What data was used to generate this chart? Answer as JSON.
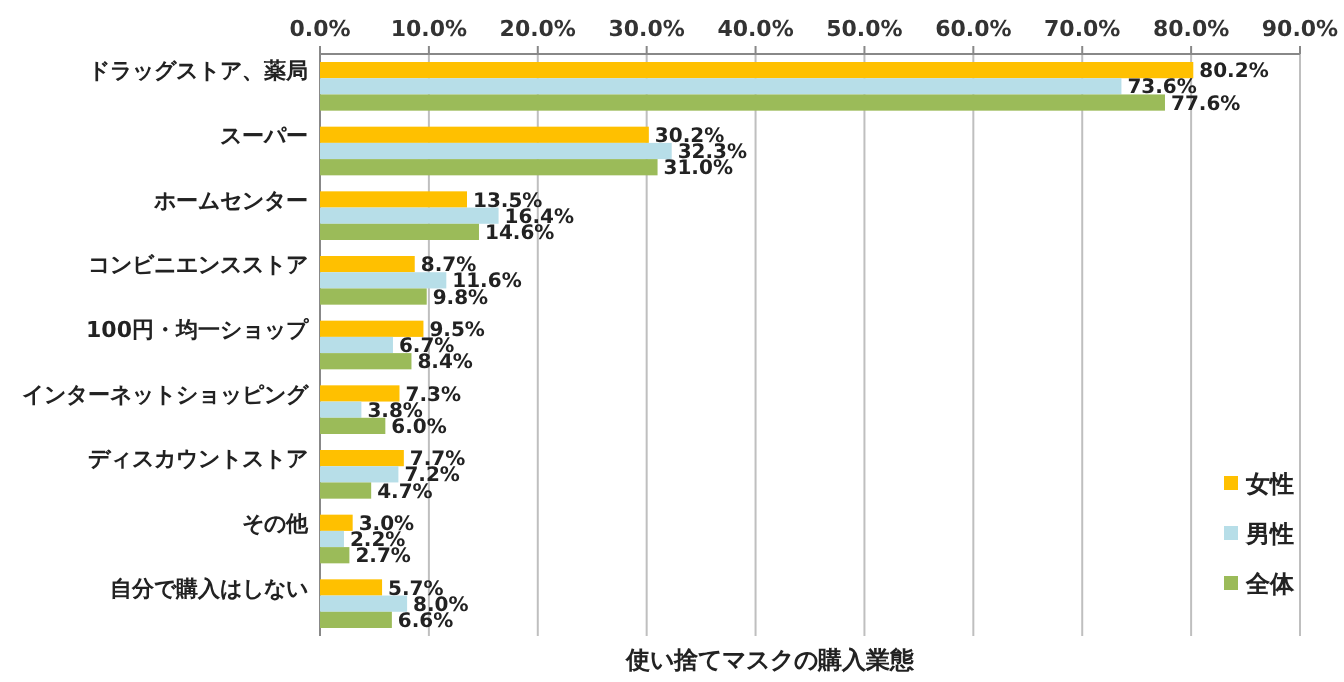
{
  "chart_data": {
    "type": "bar",
    "orientation": "horizontal",
    "title": "使い捨てマスクの購入業態",
    "categories": [
      "ドラッグストア、薬局",
      "スーパー",
      "ホームセンター",
      "コンビニエンスストア",
      "100円・均一ショップ",
      "インターネットショッピング",
      "ディスカウントストア",
      "その他",
      "自分で購入はしない"
    ],
    "series": [
      {
        "name": "女性",
        "color": "#ffc000",
        "values": [
          80.2,
          30.2,
          13.5,
          8.7,
          9.5,
          7.3,
          7.7,
          3.0,
          5.7
        ],
        "value_labels": [
          "80.2%",
          "30.2%",
          "13.5%",
          "8.7%",
          "9.5%",
          "7.3%",
          "7.7%",
          "3.0%",
          "5.7%"
        ]
      },
      {
        "name": "男性",
        "color": "#b7dee8",
        "values": [
          73.6,
          32.3,
          16.4,
          11.6,
          6.7,
          3.8,
          7.2,
          2.2,
          8.0
        ],
        "value_labels": [
          "73.6%",
          "32.3%",
          "16.4%",
          "11.6%",
          "6.7%",
          "3.8%",
          "7.2%",
          "2.2%",
          "8.0%"
        ]
      },
      {
        "name": "全体",
        "color": "#9bbb59",
        "values": [
          77.6,
          31.0,
          14.6,
          9.8,
          8.4,
          6.0,
          4.7,
          2.7,
          6.6
        ],
        "value_labels": [
          "77.6%",
          "31.0%",
          "14.6%",
          "9.8%",
          "8.4%",
          "6.0%",
          "4.7%",
          "2.7%",
          "6.6%"
        ]
      }
    ],
    "xlim": [
      0,
      90
    ],
    "xticks": [
      {
        "value": 0,
        "label": "0.0%"
      },
      {
        "value": 10,
        "label": "10.0%"
      },
      {
        "value": 20,
        "label": "20.0%"
      },
      {
        "value": 30,
        "label": "30.0%"
      },
      {
        "value": 40,
        "label": "40.0%"
      },
      {
        "value": 50,
        "label": "50.0%"
      },
      {
        "value": 60,
        "label": "60.0%"
      },
      {
        "value": 70,
        "label": "70.0%"
      },
      {
        "value": 80,
        "label": "80.0%"
      },
      {
        "value": 90,
        "label": "90.0%"
      }
    ],
    "grid": "x",
    "legend": "bottom right"
  }
}
